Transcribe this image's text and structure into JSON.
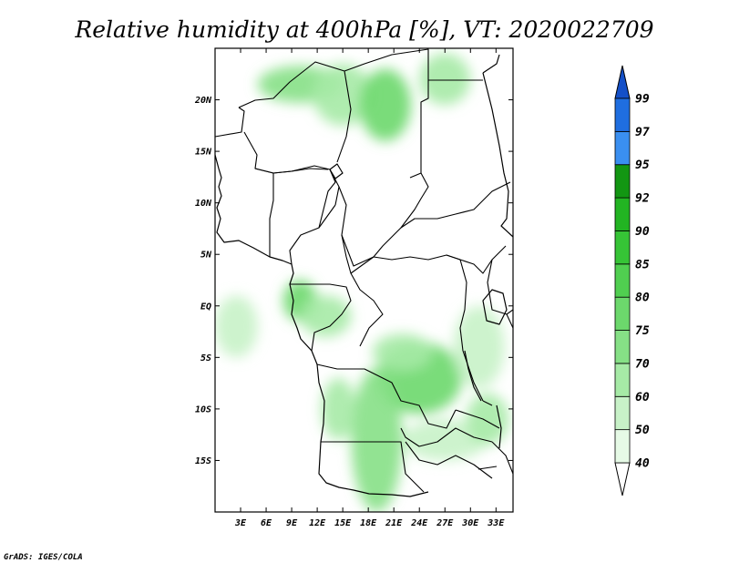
{
  "title": "Relative humidity at 400hPa [%], VT: 2020022709",
  "credit": "GrADS: IGES/COLA",
  "map": {
    "lon_range": [
      0,
      35
    ],
    "lat_range": [
      -20,
      25
    ],
    "x_ticks": [
      {
        "lon": 3,
        "label": "3E"
      },
      {
        "lon": 6,
        "label": "6E"
      },
      {
        "lon": 9,
        "label": "9E"
      },
      {
        "lon": 12,
        "label": "12E"
      },
      {
        "lon": 15,
        "label": "15E"
      },
      {
        "lon": 18,
        "label": "18E"
      },
      {
        "lon": 21,
        "label": "21E"
      },
      {
        "lon": 24,
        "label": "24E"
      },
      {
        "lon": 27,
        "label": "27E"
      },
      {
        "lon": 30,
        "label": "30E"
      },
      {
        "lon": 33,
        "label": "33E"
      }
    ],
    "y_ticks": [
      {
        "lat": 20,
        "label": "20N"
      },
      {
        "lat": 15,
        "label": "15N"
      },
      {
        "lat": 10,
        "label": "10N"
      },
      {
        "lat": 5,
        "label": "5N"
      },
      {
        "lat": 0,
        "label": "EQ"
      },
      {
        "lat": -5,
        "label": "5S"
      },
      {
        "lat": -10,
        "label": "10S"
      },
      {
        "lat": -15,
        "label": "15S"
      }
    ]
  },
  "colorbar": {
    "levels": [
      "40",
      "50",
      "60",
      "70",
      "75",
      "80",
      "85",
      "90",
      "92",
      "95",
      "97",
      "99"
    ],
    "colors": [
      "#e6fae6",
      "#c8f2c8",
      "#a6eaa6",
      "#86e086",
      "#6cd86c",
      "#50cf50",
      "#36c436",
      "#22b422",
      "#129612",
      "#3a8ff0",
      "#1f6ee0",
      "#1450c8"
    ],
    "under_color": "#ffffff",
    "over_color": "#1450c8"
  },
  "humidity_patches": [
    {
      "lon": 10,
      "lat": 21.5,
      "rx": 5,
      "ry": 1.8,
      "level": "70",
      "color": "#86e086"
    },
    {
      "lon": 15,
      "lat": 20.5,
      "rx": 3.5,
      "ry": 3,
      "level": "60",
      "color": "#a6eaa6"
    },
    {
      "lon": 20,
      "lat": 19.5,
      "rx": 3,
      "ry": 3.5,
      "level": "75",
      "color": "#6cd86c"
    },
    {
      "lon": 27,
      "lat": 22,
      "rx": 3,
      "ry": 2.5,
      "level": "60",
      "color": "#a6eaa6"
    },
    {
      "lon": 10,
      "lat": 0.5,
      "rx": 2,
      "ry": 2,
      "level": "75",
      "color": "#6cd86c"
    },
    {
      "lon": 13,
      "lat": -1,
      "rx": 3,
      "ry": 2,
      "level": "60",
      "color": "#a6eaa6"
    },
    {
      "lon": 24,
      "lat": -7,
      "rx": 5,
      "ry": 3.5,
      "level": "75",
      "color": "#6cd86c"
    },
    {
      "lon": 22,
      "lat": -4.5,
      "rx": 3.5,
      "ry": 1.8,
      "level": "60",
      "color": "#a6eaa6"
    },
    {
      "lon": 31,
      "lat": -4,
      "rx": 3,
      "ry": 4,
      "level": "50",
      "color": "#c8f2c8"
    },
    {
      "lon": 19,
      "lat": -13,
      "rx": 3,
      "ry": 7,
      "level": "70",
      "color": "#86e086"
    },
    {
      "lon": 14.5,
      "lat": -10,
      "rx": 2,
      "ry": 3,
      "level": "60",
      "color": "#a6eaa6"
    },
    {
      "lon": 27,
      "lat": -13,
      "rx": 5,
      "ry": 2,
      "level": "50",
      "color": "#c8f2c8"
    },
    {
      "lon": 32,
      "lat": -11,
      "rx": 2.5,
      "ry": 2.5,
      "level": "60",
      "color": "#a6eaa6"
    },
    {
      "lon": 2.5,
      "lat": -2,
      "rx": 2.5,
      "ry": 3,
      "level": "50",
      "color": "#c8f2c8"
    }
  ]
}
